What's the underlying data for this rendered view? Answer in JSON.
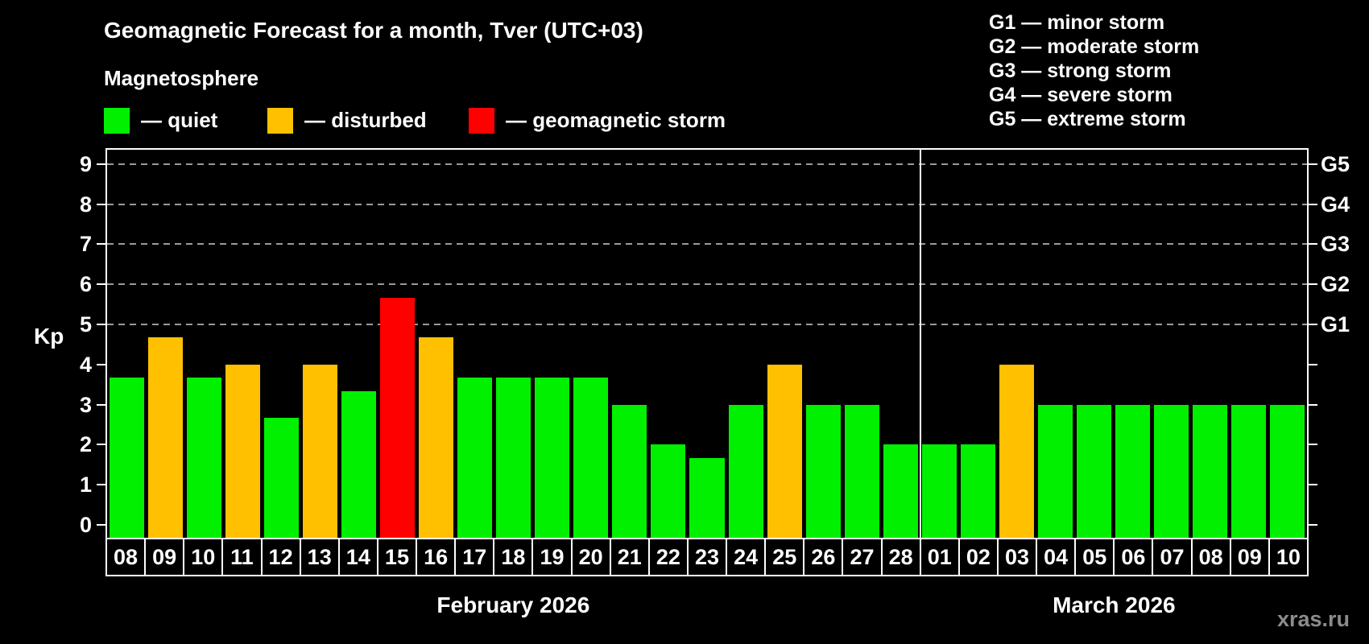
{
  "header": {
    "title": "Geomagnetic Forecast for a month, Tver (UTC+03)",
    "subtitle": "Magnetosphere"
  },
  "legend": {
    "items": [
      {
        "id": "quiet",
        "label": "— quiet"
      },
      {
        "id": "disturbed",
        "label": "— disturbed"
      },
      {
        "id": "storm",
        "label": "— geomagnetic storm"
      }
    ]
  },
  "storm_scale": {
    "lines": [
      "G1 — minor storm",
      "G2 — moderate storm",
      "G3 — strong storm",
      "G4 — severe storm",
      "G5 — extreme storm"
    ]
  },
  "axis": {
    "y_label": "Kp"
  },
  "chart_data": {
    "type": "bar",
    "ylabel": "Kp",
    "y_ticks": [
      0,
      1,
      2,
      3,
      4,
      5,
      6,
      7,
      8,
      9
    ],
    "ylim": [
      0,
      9.4
    ],
    "grid": "dashed horizontal at Kp 5-9",
    "gridlines_kp": [
      5,
      6,
      7,
      8,
      9
    ],
    "right_axis": [
      {
        "kp": 5,
        "label": "G1"
      },
      {
        "kp": 6,
        "label": "G2"
      },
      {
        "kp": 7,
        "label": "G3"
      },
      {
        "kp": 8,
        "label": "G4"
      },
      {
        "kp": 9,
        "label": "G5"
      }
    ],
    "level_colors": {
      "quiet": "#00F000",
      "disturbed": "#FFC000",
      "storm": "#FF0000"
    },
    "months": [
      {
        "label": "February 2026",
        "days": [
          {
            "day": "08",
            "kp": 3.67,
            "level": "quiet"
          },
          {
            "day": "09",
            "kp": 4.67,
            "level": "disturbed"
          },
          {
            "day": "10",
            "kp": 3.67,
            "level": "quiet"
          },
          {
            "day": "11",
            "kp": 4.0,
            "level": "disturbed"
          },
          {
            "day": "12",
            "kp": 2.67,
            "level": "quiet"
          },
          {
            "day": "13",
            "kp": 4.0,
            "level": "disturbed"
          },
          {
            "day": "14",
            "kp": 3.33,
            "level": "quiet"
          },
          {
            "day": "15",
            "kp": 5.67,
            "level": "storm"
          },
          {
            "day": "16",
            "kp": 4.67,
            "level": "disturbed"
          },
          {
            "day": "17",
            "kp": 3.67,
            "level": "quiet"
          },
          {
            "day": "18",
            "kp": 3.67,
            "level": "quiet"
          },
          {
            "day": "19",
            "kp": 3.67,
            "level": "quiet"
          },
          {
            "day": "20",
            "kp": 3.67,
            "level": "quiet"
          },
          {
            "day": "21",
            "kp": 3.0,
            "level": "quiet"
          },
          {
            "day": "22",
            "kp": 2.0,
            "level": "quiet"
          },
          {
            "day": "23",
            "kp": 1.67,
            "level": "quiet"
          },
          {
            "day": "24",
            "kp": 3.0,
            "level": "quiet"
          },
          {
            "day": "25",
            "kp": 4.0,
            "level": "disturbed"
          },
          {
            "day": "26",
            "kp": 3.0,
            "level": "quiet"
          },
          {
            "day": "27",
            "kp": 3.0,
            "level": "quiet"
          },
          {
            "day": "28",
            "kp": 2.0,
            "level": "quiet"
          }
        ]
      },
      {
        "label": "March 2026",
        "days": [
          {
            "day": "01",
            "kp": 2.0,
            "level": "quiet"
          },
          {
            "day": "02",
            "kp": 2.0,
            "level": "quiet"
          },
          {
            "day": "03",
            "kp": 4.0,
            "level": "disturbed"
          },
          {
            "day": "04",
            "kp": 3.0,
            "level": "quiet"
          },
          {
            "day": "05",
            "kp": 3.0,
            "level": "quiet"
          },
          {
            "day": "06",
            "kp": 3.0,
            "level": "quiet"
          },
          {
            "day": "07",
            "kp": 3.0,
            "level": "quiet"
          },
          {
            "day": "08",
            "kp": 3.0,
            "level": "quiet"
          },
          {
            "day": "09",
            "kp": 3.0,
            "level": "quiet"
          },
          {
            "day": "10",
            "kp": 3.0,
            "level": "quiet"
          }
        ]
      }
    ]
  },
  "watermark": "xras.ru"
}
